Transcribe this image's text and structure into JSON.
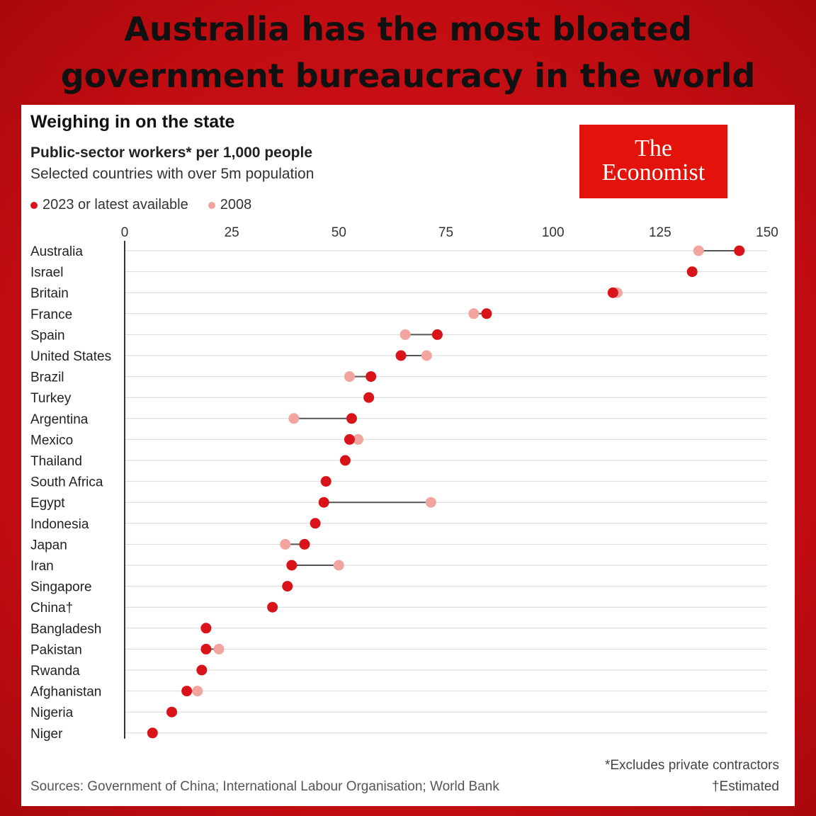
{
  "headline": {
    "line1": "Australia has the most bloated",
    "line2": "government bureaucracy in the world"
  },
  "logo": {
    "line1": "The",
    "line2": "Economist"
  },
  "colors": {
    "latest": "#d8141a",
    "y2008": "#f2a59e",
    "grid": "#d9d9d9",
    "axis": "#333333",
    "connector": "#555555"
  },
  "chart_data": {
    "type": "scatter",
    "title": "Weighing in on the state",
    "subtitle": "Public-sector workers* per 1,000 people",
    "note": "Selected countries with over 5m population",
    "legend": [
      "2023 or latest available",
      "2008"
    ],
    "xlim": [
      0,
      150
    ],
    "xticks": [
      0,
      25,
      50,
      75,
      100,
      125,
      150
    ],
    "categories": [
      "Australia",
      "Israel",
      "Britain",
      "France",
      "Spain",
      "United States",
      "Brazil",
      "Turkey",
      "Argentina",
      "Mexico",
      "Thailand",
      "South Africa",
      "Egypt",
      "Indonesia",
      "Japan",
      "Iran",
      "Singapore",
      "China†",
      "Bangladesh",
      "Pakistan",
      "Rwanda",
      "Afghanistan",
      "Nigeria",
      "Niger"
    ],
    "series": [
      {
        "name": "2023 or latest available",
        "values": [
          143.5,
          132.5,
          114.0,
          84.5,
          73.0,
          64.5,
          57.5,
          57.0,
          53.0,
          52.5,
          51.5,
          47.0,
          46.5,
          44.5,
          42.0,
          39.0,
          38.0,
          34.5,
          19.0,
          19.0,
          18.0,
          14.5,
          11.0,
          6.5
        ]
      },
      {
        "name": "2008",
        "values": [
          134.0,
          null,
          115.0,
          81.5,
          65.5,
          70.5,
          52.5,
          null,
          39.5,
          54.5,
          null,
          null,
          71.5,
          null,
          37.5,
          50.0,
          null,
          null,
          null,
          22.0,
          null,
          17.0,
          null,
          null
        ]
      }
    ],
    "footnotes": [
      "*Excludes private contractors",
      "†Estimated"
    ],
    "sources": "Sources: Government of China; International Labour Organisation; World Bank"
  }
}
